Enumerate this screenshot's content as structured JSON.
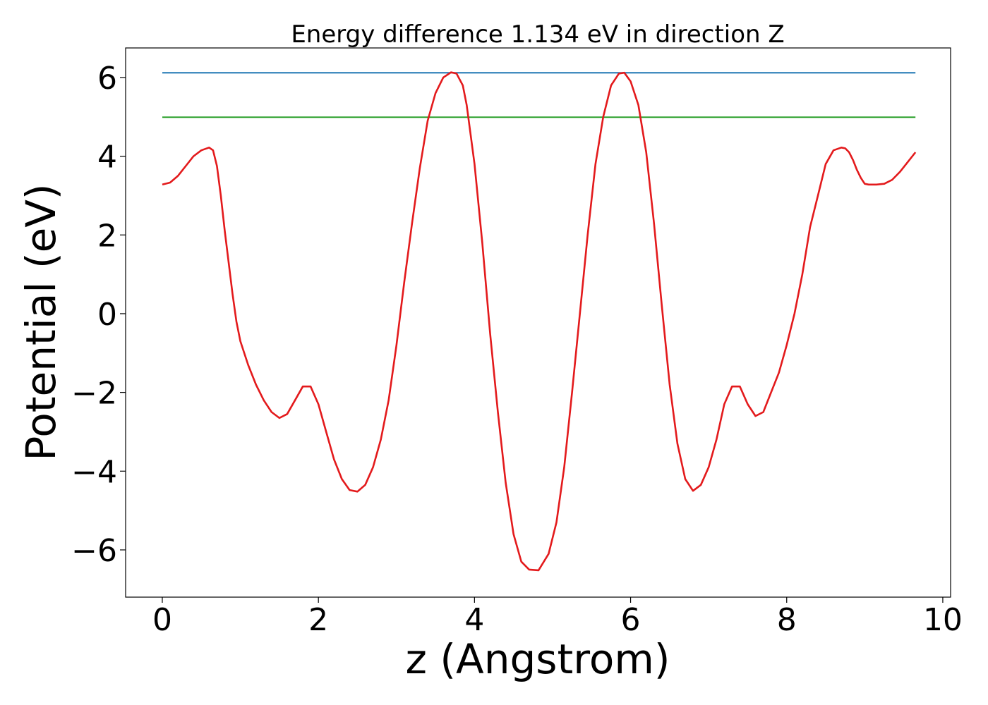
{
  "chart_data": {
    "type": "line",
    "title": "Energy difference 1.134 eV in direction Z",
    "xlabel": "z (Angstrom)",
    "ylabel": "Potential (eV)",
    "xlim": [
      -0.47,
      10.1
    ],
    "ylim": [
      -7.2,
      6.75
    ],
    "xticks": [
      0,
      2,
      4,
      6,
      8,
      10
    ],
    "yticks": [
      6,
      4,
      2,
      0,
      -2,
      -4,
      -6
    ],
    "xtick_labels": [
      "0",
      "2",
      "4",
      "6",
      "8",
      "10"
    ],
    "ytick_labels": [
      "6",
      "4",
      "2",
      "0",
      "−2",
      "−4",
      "−6"
    ],
    "grid": false,
    "series": [
      {
        "color": "#1f77b4",
        "x": [
          0,
          9.65
        ],
        "y": [
          6.12,
          6.12
        ]
      },
      {
        "color": "#2ca02c",
        "x": [
          0,
          9.65
        ],
        "y": [
          4.99,
          4.99
        ]
      },
      {
        "color": "#e31a1c",
        "x": [
          0.0,
          0.1,
          0.2,
          0.3,
          0.4,
          0.5,
          0.6,
          0.65,
          0.7,
          0.75,
          0.8,
          0.85,
          0.9,
          0.95,
          1.0,
          1.1,
          1.2,
          1.3,
          1.4,
          1.5,
          1.6,
          1.7,
          1.8,
          1.9,
          2.0,
          2.1,
          2.2,
          2.3,
          2.4,
          2.5,
          2.6,
          2.7,
          2.8,
          2.9,
          3.0,
          3.1,
          3.2,
          3.3,
          3.4,
          3.5,
          3.6,
          3.7,
          3.77,
          3.85,
          3.9,
          4.0,
          4.1,
          4.2,
          4.3,
          4.4,
          4.5,
          4.6,
          4.7,
          4.82,
          4.95,
          5.05,
          5.15,
          5.25,
          5.35,
          5.45,
          5.55,
          5.65,
          5.75,
          5.85,
          5.92,
          6.0,
          6.1,
          6.2,
          6.3,
          6.4,
          6.5,
          6.6,
          6.7,
          6.8,
          6.9,
          7.0,
          7.1,
          7.2,
          7.3,
          7.4,
          7.5,
          7.6,
          7.7,
          7.8,
          7.9,
          8.0,
          8.1,
          8.2,
          8.3,
          8.4,
          8.5,
          8.6,
          8.7,
          8.75,
          8.8,
          8.85,
          8.9,
          8.95,
          9.0,
          9.05,
          9.15,
          9.25,
          9.35,
          9.45,
          9.55,
          9.65
        ],
        "y": [
          3.28,
          3.33,
          3.5,
          3.75,
          4.0,
          4.15,
          4.22,
          4.15,
          3.75,
          3.0,
          2.1,
          1.3,
          0.5,
          -0.2,
          -0.7,
          -1.3,
          -1.8,
          -2.2,
          -2.5,
          -2.65,
          -2.55,
          -2.2,
          -1.85,
          -1.85,
          -2.3,
          -3.0,
          -3.7,
          -4.2,
          -4.48,
          -4.52,
          -4.35,
          -3.9,
          -3.2,
          -2.2,
          -0.8,
          0.8,
          2.3,
          3.7,
          4.9,
          5.6,
          6.0,
          6.13,
          6.1,
          5.8,
          5.3,
          3.8,
          1.8,
          -0.5,
          -2.5,
          -4.3,
          -5.6,
          -6.3,
          -6.5,
          -6.52,
          -6.1,
          -5.3,
          -3.9,
          -2.0,
          0.0,
          2.0,
          3.8,
          5.0,
          5.8,
          6.1,
          6.12,
          5.9,
          5.3,
          4.1,
          2.3,
          0.2,
          -1.8,
          -3.3,
          -4.2,
          -4.5,
          -4.35,
          -3.9,
          -3.2,
          -2.3,
          -1.85,
          -1.85,
          -2.3,
          -2.6,
          -2.5,
          -2.0,
          -1.5,
          -0.8,
          0.0,
          1.0,
          2.2,
          3.0,
          3.8,
          4.15,
          4.22,
          4.2,
          4.1,
          3.9,
          3.65,
          3.45,
          3.3,
          3.28,
          3.28,
          3.3,
          3.4,
          3.6,
          3.85,
          4.1
        ]
      }
    ]
  }
}
